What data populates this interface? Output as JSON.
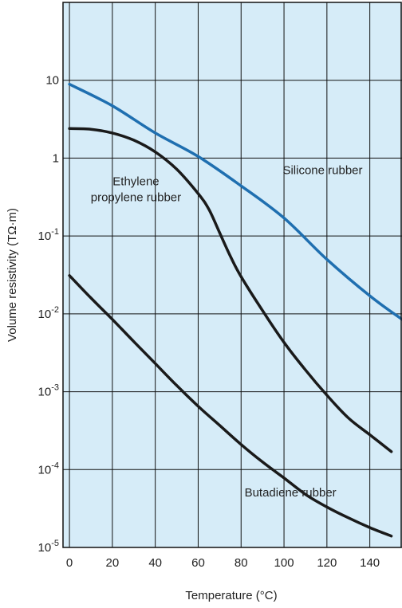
{
  "chart_data": {
    "type": "line",
    "xlabel": "Temperature (°C)",
    "ylabel": "Volume resistivity (TΩ·m)",
    "y_scale": "log",
    "xlim": [
      -3,
      155
    ],
    "ylim": [
      1e-05,
      100
    ],
    "grid": true,
    "x_ticks": [
      {
        "value": 0,
        "label": "0"
      },
      {
        "value": 20,
        "label": "20"
      },
      {
        "value": 40,
        "label": "40"
      },
      {
        "value": 60,
        "label": "60"
      },
      {
        "value": 80,
        "label": "80"
      },
      {
        "value": 100,
        "label": "100"
      },
      {
        "value": 120,
        "label": "120"
      },
      {
        "value": 140,
        "label": "140"
      }
    ],
    "x_gridlines": [
      0,
      20,
      40,
      60,
      80,
      100,
      120,
      140
    ],
    "y_ticks": [
      {
        "value": 10,
        "base": "10",
        "exp": ""
      },
      {
        "value": 1,
        "base": "1",
        "exp": ""
      },
      {
        "value": 0.1,
        "base": "10",
        "exp": "-1"
      },
      {
        "value": 0.01,
        "base": "10",
        "exp": "-2"
      },
      {
        "value": 0.001,
        "base": "10",
        "exp": "-3"
      },
      {
        "value": 0.0001,
        "base": "10",
        "exp": "-4"
      },
      {
        "value": 1e-05,
        "base": "10",
        "exp": "-5"
      }
    ],
    "series": [
      {
        "name": "Silicone rubber",
        "color": "#1f6fb0",
        "label_lines": [
          "Silicone rubber"
        ],
        "label_at": {
          "x": 118,
          "y": 0.62
        },
        "x": [
          0,
          20,
          40,
          60,
          80,
          100,
          120,
          140,
          155
        ],
        "y": [
          8.9,
          4.7,
          2.1,
          1.05,
          0.44,
          0.17,
          0.05,
          0.017,
          0.0085
        ]
      },
      {
        "name": "Ethylene propylene rubber",
        "color": "#1a1a1a",
        "label_lines": [
          "Ethylene",
          "propylene rubber"
        ],
        "label_at": {
          "x": 31,
          "y": 0.45
        },
        "x": [
          0,
          10,
          20,
          30,
          40,
          50,
          60,
          65,
          70,
          75,
          80,
          90,
          100,
          110,
          120,
          130,
          140,
          150
        ],
        "y": [
          2.4,
          2.35,
          2.1,
          1.7,
          1.2,
          0.72,
          0.35,
          0.22,
          0.11,
          0.055,
          0.03,
          0.011,
          0.0043,
          0.0019,
          0.0009,
          0.00046,
          0.00028,
          0.00017
        ]
      },
      {
        "name": "Butadiene rubber",
        "color": "#1a1a1a",
        "label_lines": [
          "Butadiene rubber"
        ],
        "label_at": {
          "x": 103,
          "y": 4.5e-05
        },
        "x": [
          0,
          10,
          20,
          30,
          40,
          50,
          60,
          70,
          80,
          90,
          100,
          110,
          120,
          130,
          140,
          150
        ],
        "y": [
          0.031,
          0.016,
          0.0085,
          0.0044,
          0.0023,
          0.0012,
          0.00065,
          0.00037,
          0.00021,
          0.000125,
          7.8e-05,
          4.8e-05,
          3.3e-05,
          2.4e-05,
          1.8e-05,
          1.4e-05
        ]
      }
    ]
  }
}
